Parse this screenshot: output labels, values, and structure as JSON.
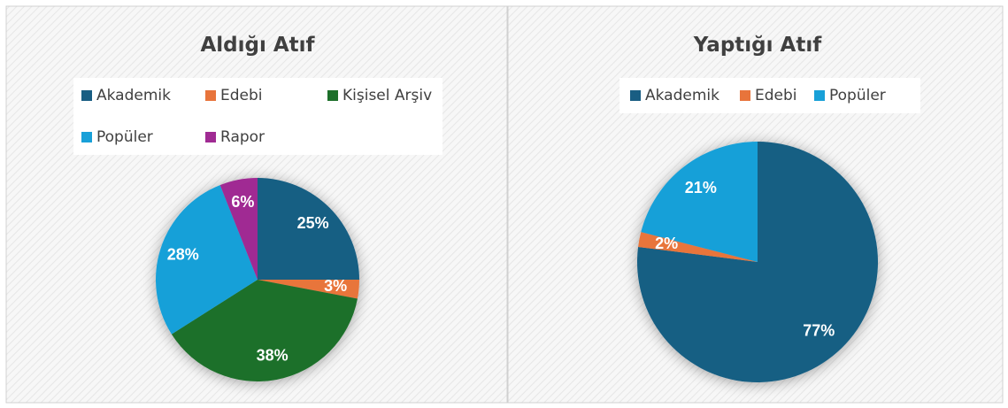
{
  "chart_data": [
    {
      "type": "pie",
      "title": "Aldığı Atıf",
      "categories": [
        "Akademik",
        "Edebi",
        "Kişisel Arşiv",
        "Popüler",
        "Rapor"
      ],
      "values": [
        25,
        3,
        38,
        28,
        6
      ],
      "value_labels": [
        "25%",
        "3%",
        "38%",
        "28%",
        "6%"
      ],
      "colors": [
        "#195e83",
        "#e8743b",
        "#1d6f2a",
        "#18a0d8",
        "#a02b93"
      ]
    },
    {
      "type": "pie",
      "title": "Yaptığı Atıf",
      "categories": [
        "Akademik",
        "Edebi",
        "Popüler"
      ],
      "values": [
        77,
        2,
        21
      ],
      "value_labels": [
        "77%",
        "2%",
        "21%"
      ],
      "colors": [
        "#195e83",
        "#e8743b",
        "#18a0d8"
      ]
    }
  ]
}
